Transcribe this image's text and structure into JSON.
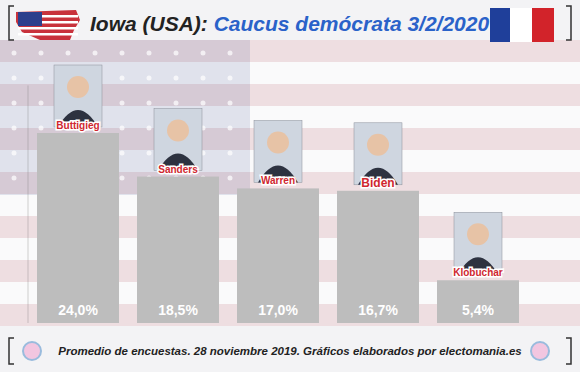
{
  "chart_data": {
    "type": "bar",
    "title": "Iowa (USA): Caucus demócrata 3/2/2020",
    "subtitle": "Promedio de encuestas. 28 noviembre 2019. Gráficos elaborados por electomania.es",
    "categories": [
      "Buttigieg",
      "Sanders",
      "Warren",
      "Biden",
      "Klobuchar"
    ],
    "values": [
      24.0,
      18.5,
      17.0,
      16.7,
      5.4
    ],
    "value_labels": [
      "24,0%",
      "18,5%",
      "17,0%",
      "16,7%",
      "5,4%"
    ],
    "color": "#bdbdbd",
    "ylim": [
      0,
      30
    ],
    "data_labels": true,
    "tick_labels": false,
    "grid": false
  }
}
